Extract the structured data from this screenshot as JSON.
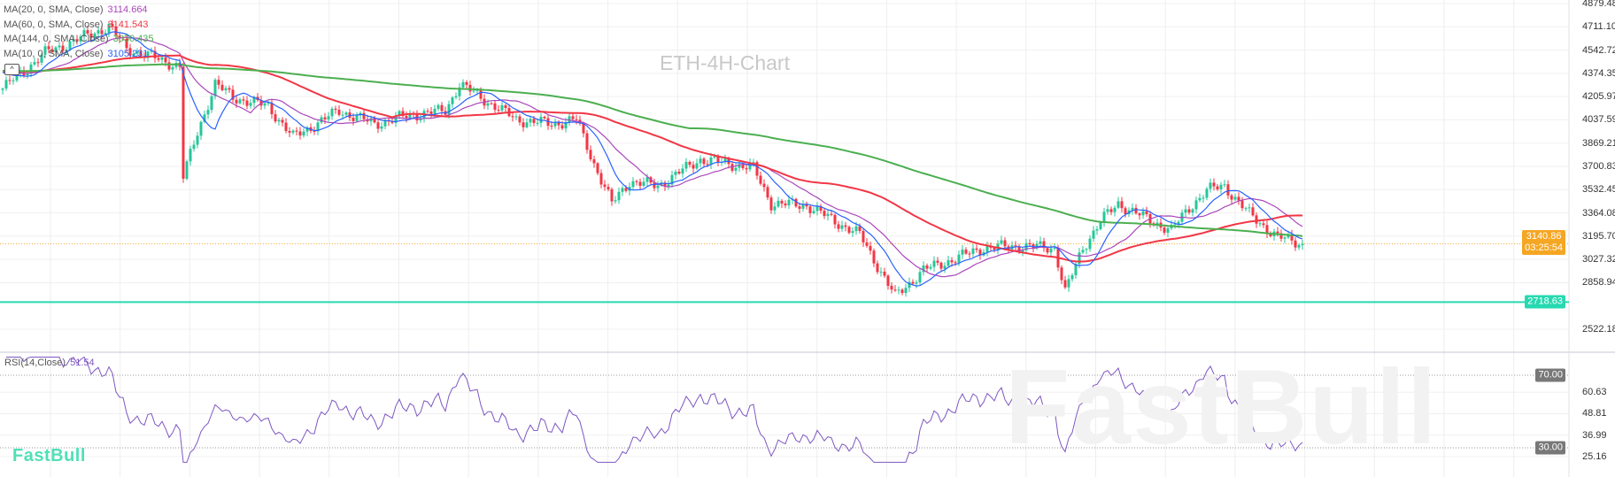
{
  "watermark_title": "ETH-4H-Chart",
  "logo": "FastBull",
  "legend": [
    {
      "label": "MA(20, 0, SMA, Close)",
      "value": "3114.664",
      "color": "#ab47bc",
      "period": 20
    },
    {
      "label": "MA(60, 0, SMA, Close)",
      "value": "3141.543",
      "color": "#f23645",
      "period": 60
    },
    {
      "label": "MA(144, 0, SMA, Close)",
      "value": "3030.435",
      "color": "#4caf50",
      "period": 144
    },
    {
      "label": "MA(10, 0, SMA, Close)",
      "value": "3105.231",
      "color": "#2962ff",
      "period": 10
    }
  ],
  "collapse_icon": "chevron-up-icon",
  "colors": {
    "up": "#26c69a",
    "down": "#f23645",
    "rsi": "#7e57c2",
    "current_price": "#f5a623",
    "support": "#26d9b0",
    "rsi_band": "#787878"
  },
  "price_axis": [
    "4879.48",
    "4711.10",
    "4542.72",
    "4374.35",
    "4205.97",
    "4037.59",
    "3869.21",
    "3700.83",
    "3532.45",
    "3364.08",
    "3195.70",
    "3027.32",
    "2858.94",
    "2522.18"
  ],
  "current_price": {
    "price": "3140.86",
    "countdown": "03:25:54"
  },
  "support_line": {
    "price": "2718.63"
  },
  "rsi": {
    "label": "RSI(14,Close)",
    "value": "51.54",
    "axis": [
      "60.63",
      "48.81",
      "36.99",
      "25.16"
    ],
    "upper_band": "70.00",
    "lower_band": "30.00"
  },
  "chart_data": {
    "type": "candlestick",
    "symbol": "ETH",
    "timeframe": "4H",
    "ylim": [
      2522.18,
      4879.48
    ],
    "grid": true,
    "approx_close_path": {
      "candle_index": [
        0,
        12,
        30,
        35,
        50,
        51,
        55,
        60,
        65,
        75,
        82,
        95,
        105,
        115,
        125,
        129,
        135,
        145,
        155,
        162,
        167,
        172,
        177,
        185,
        197,
        205,
        212,
        217,
        227,
        235,
        242,
        247,
        252,
        260,
        267,
        277,
        287,
        297,
        300,
        305,
        310,
        315,
        322,
        330,
        335,
        340,
        345,
        347,
        352,
        360,
        367
      ],
      "close": [
        4264,
        4521,
        4713,
        4553,
        4425,
        3624,
        3944,
        4297,
        4200,
        4136,
        3912,
        4104,
        4008,
        4072,
        4104,
        4297,
        4200,
        4040,
        4008,
        4040,
        3720,
        3432,
        3592,
        3560,
        3752,
        3720,
        3688,
        3432,
        3419,
        3304,
        3207,
        2983,
        2760,
        2951,
        3015,
        3111,
        3124,
        3111,
        2790,
        3111,
        3304,
        3432,
        3335,
        3239,
        3400,
        3528,
        3560,
        3500,
        3355,
        3188,
        3141
      ]
    }
  }
}
